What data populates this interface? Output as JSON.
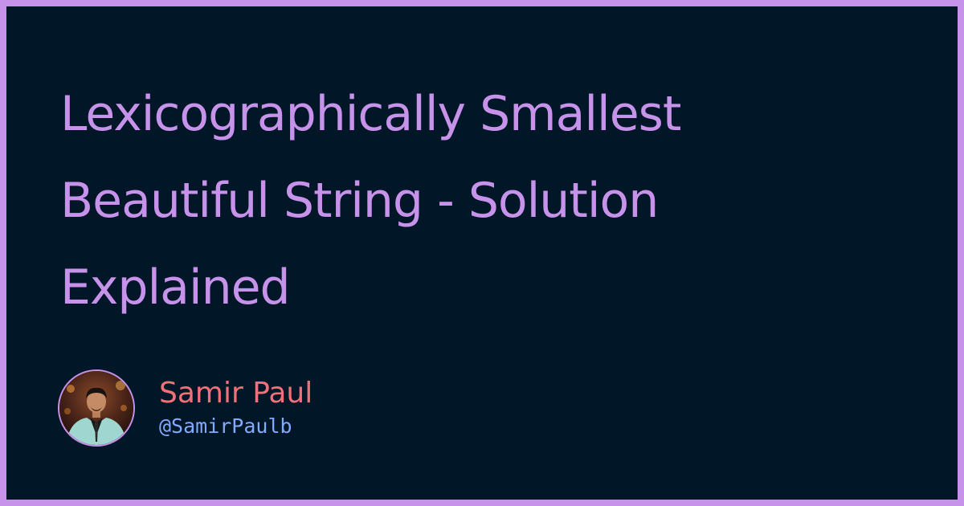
{
  "title_lines": [
    "Lexicographically Smallest",
    "Beautiful String - Solution",
    "Explained"
  ],
  "author": {
    "name": "Samir Paul",
    "handle": "@SamirPaulb",
    "avatar_icon": "avatar-photo-icon"
  },
  "colors": {
    "frame": "#c792ea",
    "background": "#011627",
    "title": "#c792ea",
    "author_name": "#f07178",
    "author_handle": "#82aaff"
  }
}
